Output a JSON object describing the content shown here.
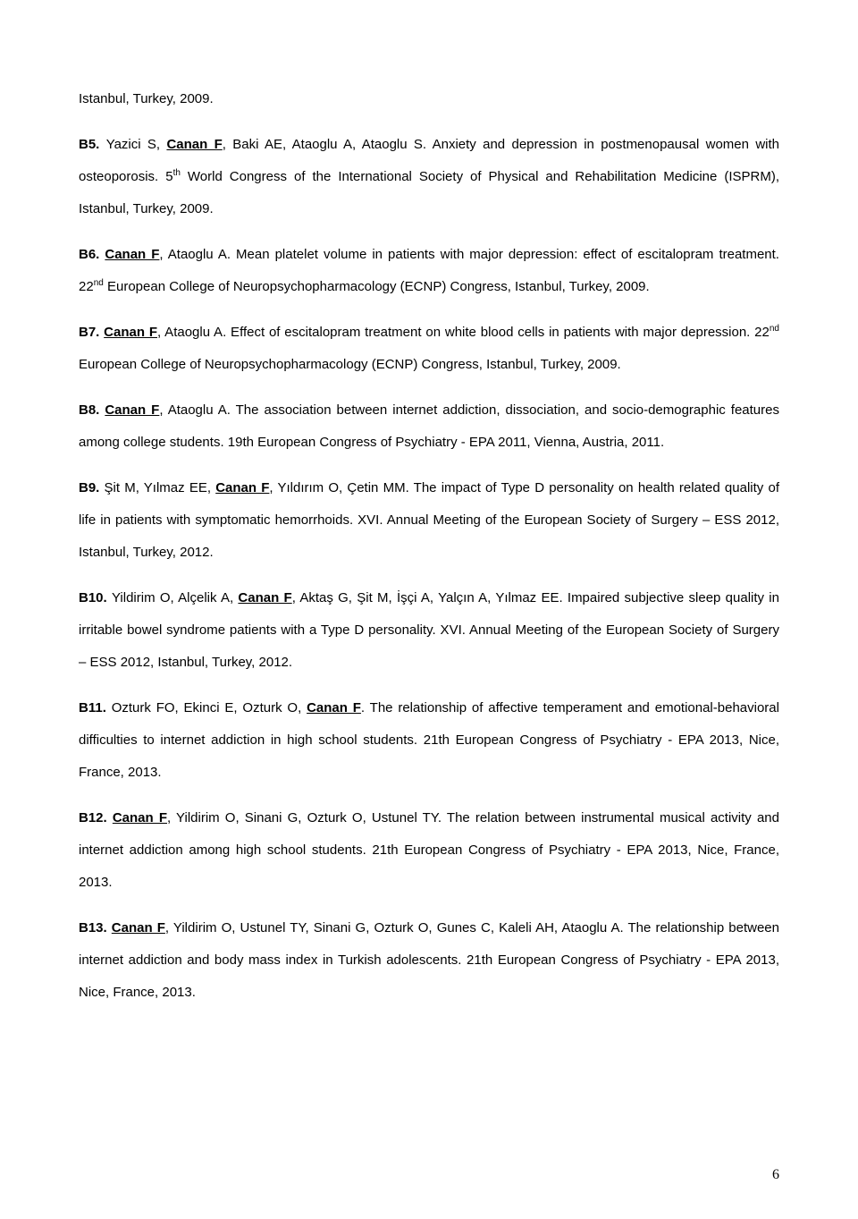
{
  "intro": "Istanbul, Turkey, 2009.",
  "entries": {
    "b5": {
      "label": "B5. ",
      "authors_pre": "Yazici S, ",
      "author_main": "Canan F",
      "authors_post": ", Baki AE, Ataoglu A, Ataoglu S. Anxiety and depression in postmenopausal women with osteoporosis. 5",
      "sup": "th",
      "tail": " World Congress of the International Society of Physical and Rehabilitation Medicine (ISPRM), Istanbul, Turkey, 2009."
    },
    "b6": {
      "label": "B6. ",
      "author_main": "Canan F",
      "text1": ", Ataoglu A. Mean platelet volume in patients with major depression: effect of escitalopram treatment. 22",
      "sup": "nd",
      "text2": " European College of Neuropsychopharmacology (ECNP) Congress, Istanbul, Turkey, 2009."
    },
    "b7": {
      "label": "B7. ",
      "author_main": "Canan F",
      "text1": ", Ataoglu A. Effect of escitalopram treatment on white blood cells in patients with major depression. 22",
      "sup": "nd",
      "text2": " European College of Neuropsychopharmacology (ECNP) Congress, Istanbul, Turkey, 2009."
    },
    "b8": {
      "label": "B8. ",
      "author_main": "Canan F",
      "text": ", Ataoglu A. The association between internet addiction, dissociation, and socio-demographic features among college students. 19th European Congress of Psychiatry - EPA 2011, Vienna, Austria, 2011."
    },
    "b9": {
      "label": "B9. ",
      "authors_pre": "Şit M, Yılmaz EE, ",
      "author_main": "Canan F",
      "text": ", Yıldırım O, Çetin MM. The impact of Type D personality on health related quality of life in patients with symptomatic hemorrhoids. XVI. Annual Meeting of the European Society of Surgery – ESS 2012, Istanbul, Turkey, 2012."
    },
    "b10": {
      "label": "B10. ",
      "authors_pre": "Yildirim O, Alçelik A, ",
      "author_main": "Canan F",
      "text": ", Aktaş G, Şit M, İşçi A, Yalçın A, Yılmaz EE. Impaired subjective sleep quality in irritable bowel syndrome patients with a Type D personality. XVI. Annual Meeting of the European Society of Surgery – ESS 2012, Istanbul, Turkey, 2012."
    },
    "b11": {
      "label": "B11. ",
      "authors_pre": "Ozturk FO, Ekinci E, Ozturk O, ",
      "author_main": "Canan F",
      "text": ". The relationship of affective temperament and emotional-behavioral difficulties to internet addiction in high school students. 21th European Congress of Psychiatry - EPA 2013, Nice, France, 2013."
    },
    "b12": {
      "label": "B12. ",
      "author_main": "Canan F",
      "text": ", Yildirim O, Sinani G, Ozturk O, Ustunel TY. The relation between instrumental musical activity and internet addiction among high school students. 21th European Congress of Psychiatry - EPA 2013, Nice, France, 2013."
    },
    "b13": {
      "label": "B13. ",
      "author_main": "Canan F",
      "text": ", Yildirim O, Ustunel TY, Sinani G, Ozturk O, Gunes C, Kaleli AH, Ataoglu A. The relationship between internet addiction and body mass index in Turkish adolescents. 21th European Congress of Psychiatry - EPA 2013, Nice, France, 2013."
    }
  },
  "page_number": "6"
}
